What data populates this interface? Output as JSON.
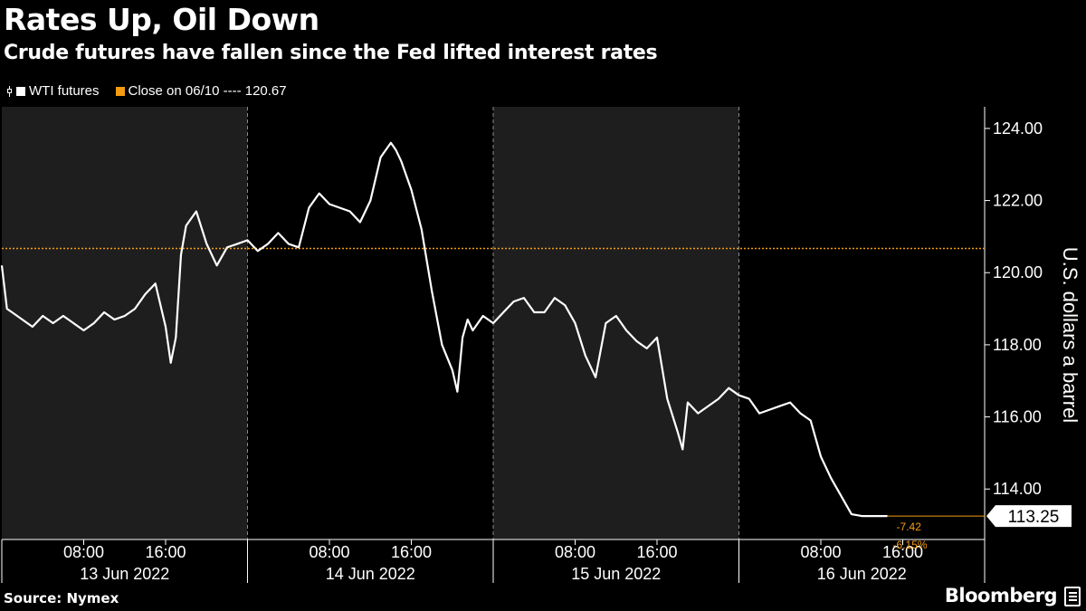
{
  "title": "Rates Up, Oil Down",
  "subtitle": "Crude futures have fallen since the Fed lifted interest rates",
  "legend": {
    "series_label": "WTI futures",
    "close_label": "Close on 06/10 ---- 120.67"
  },
  "footer": {
    "source": "Source: Nymex",
    "brand": "Bloomberg"
  },
  "colors": {
    "background": "#000000",
    "series": "#ffffff",
    "reference": "#f39c12",
    "shade": "#1e1e1e"
  },
  "chart_data": {
    "type": "line",
    "ylabel": "U.S. dollars a barrel",
    "ylim": [
      112.6,
      124.6
    ],
    "y_ticks": [
      "124.00",
      "122.00",
      "120.00",
      "118.00",
      "116.00",
      "114.00"
    ],
    "xlim": [
      0,
      96
    ],
    "x_unit": "hours from 00:00 13 Jun 2022",
    "x_ticks": [
      {
        "hour": 8,
        "label": "08:00"
      },
      {
        "hour": 16,
        "label": "16:00"
      },
      {
        "hour": 32,
        "label": "08:00"
      },
      {
        "hour": 40,
        "label": "16:00"
      },
      {
        "hour": 56,
        "label": "08:00"
      },
      {
        "hour": 64,
        "label": "16:00"
      },
      {
        "hour": 80,
        "label": "08:00"
      },
      {
        "hour": 88,
        "label": "16:00"
      }
    ],
    "day_labels": [
      {
        "hour": 12,
        "label": "13 Jun 2022"
      },
      {
        "hour": 36,
        "label": "14 Jun 2022"
      },
      {
        "hour": 60,
        "label": "15 Jun 2022"
      },
      {
        "hour": 84,
        "label": "16 Jun 2022"
      }
    ],
    "reference_line": {
      "label": "Close on 06/10",
      "value": 120.67
    },
    "last_value": {
      "value": 113.25,
      "label": "113.25",
      "change": "-7.42",
      "change_pct": "-6.15%"
    },
    "series": [
      {
        "name": "WTI futures",
        "x": [
          0,
          0.5,
          1,
          2,
          3,
          4,
          5,
          6,
          7,
          8,
          9,
          10,
          11,
          12,
          13,
          14,
          15,
          16,
          16.5,
          17,
          17.5,
          18,
          19,
          20,
          21,
          22,
          23,
          24,
          25,
          26,
          27,
          28,
          29,
          30,
          31,
          32,
          33,
          34,
          35,
          36,
          37,
          38,
          38.5,
          39,
          40,
          41,
          42,
          43,
          44,
          44.5,
          45,
          45.5,
          46,
          47,
          48,
          49,
          50,
          51,
          52,
          53,
          54,
          55,
          56,
          57,
          58,
          59,
          60,
          61,
          62,
          63,
          64,
          65,
          66,
          66.5,
          67,
          68,
          69,
          70,
          71,
          72,
          73,
          74,
          75,
          76,
          77,
          78,
          79,
          80,
          81,
          82,
          83,
          84,
          85,
          85.5,
          86,
          86.5
        ],
        "values": [
          120.2,
          119.0,
          118.9,
          118.7,
          118.5,
          118.8,
          118.6,
          118.8,
          118.6,
          118.4,
          118.6,
          118.9,
          118.7,
          118.8,
          119.0,
          119.4,
          119.7,
          118.5,
          117.5,
          118.2,
          120.5,
          121.3,
          121.7,
          120.8,
          120.2,
          120.7,
          120.8,
          120.9,
          120.6,
          120.8,
          121.1,
          120.8,
          120.7,
          121.8,
          122.2,
          121.9,
          121.8,
          121.7,
          121.4,
          122.0,
          123.2,
          123.6,
          123.4,
          123.1,
          122.3,
          121.2,
          119.5,
          118.0,
          117.3,
          116.7,
          118.2,
          118.7,
          118.4,
          118.8,
          118.6,
          118.9,
          119.2,
          119.3,
          118.9,
          118.9,
          119.3,
          119.1,
          118.6,
          117.7,
          117.1,
          118.6,
          118.8,
          118.4,
          118.1,
          117.9,
          118.2,
          116.5,
          115.6,
          115.1,
          116.4,
          116.1,
          116.3,
          116.5,
          116.8,
          116.6,
          116.5,
          116.1,
          116.2,
          116.3,
          116.4,
          116.1,
          115.9,
          114.9,
          114.3,
          113.8,
          113.3,
          113.25,
          113.25,
          113.25,
          113.25,
          113.25
        ]
      }
    ]
  }
}
